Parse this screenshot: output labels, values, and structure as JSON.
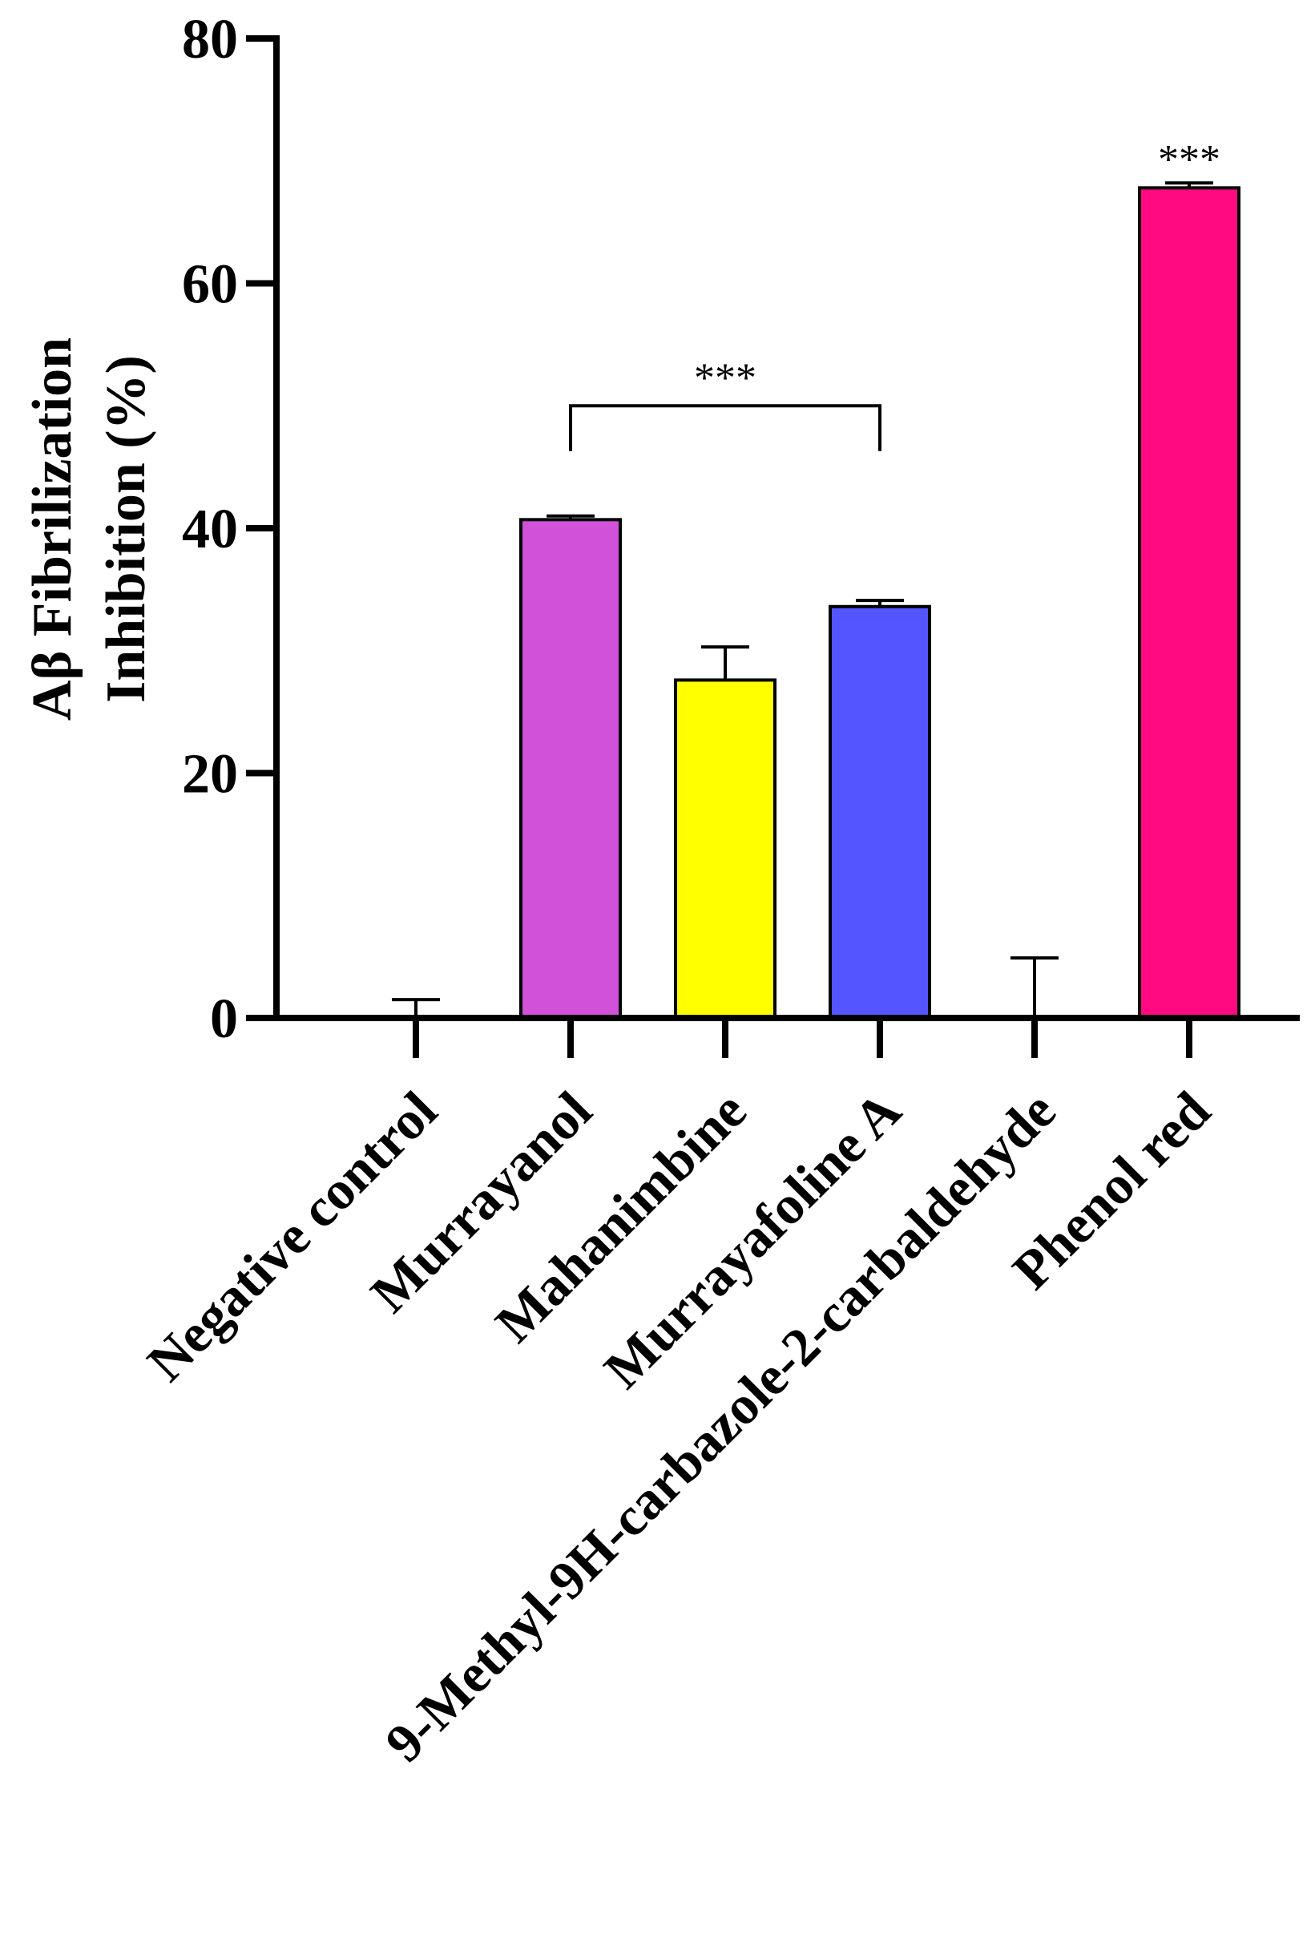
{
  "chart_data": {
    "type": "bar",
    "title": "",
    "xlabel": "",
    "ylabel_lines": [
      "Aβ Fibrilization",
      "Inhibition (%)"
    ],
    "ylim": [
      0,
      80
    ],
    "yticks": [
      0,
      20,
      40,
      60,
      80
    ],
    "grid": false,
    "categories": [
      "Negative control",
      "Murrayanol",
      "Mahanimbine",
      "Murrayafoline A",
      "9-Methyl-9H-carbazole-2-carbaldehyde",
      "Phenol red"
    ],
    "values": [
      0,
      40.7,
      27.6,
      33.6,
      0,
      67.8
    ],
    "errors": [
      1.5,
      0.3,
      2.7,
      0.5,
      4.9,
      0.4
    ],
    "colors": [
      "#ffffff",
      "#d152d9",
      "#ffff00",
      "#5555ff",
      "#ffffff",
      "#ff0a80"
    ],
    "annotations": {
      "bracket": {
        "from": 1,
        "to": 3,
        "level": 50,
        "label": "***"
      },
      "bar_star": {
        "index": 5,
        "label": "***"
      }
    }
  }
}
